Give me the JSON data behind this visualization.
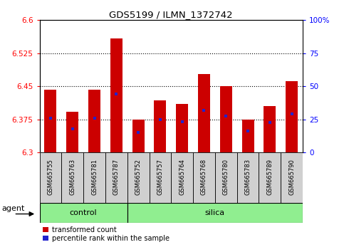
{
  "title": "GDS5199 / ILMN_1372742",
  "samples": [
    "GSM665755",
    "GSM665763",
    "GSM665781",
    "GSM665787",
    "GSM665752",
    "GSM665757",
    "GSM665764",
    "GSM665768",
    "GSM665780",
    "GSM665783",
    "GSM665789",
    "GSM665790"
  ],
  "n_control": 4,
  "n_silica": 8,
  "bar_values": [
    6.442,
    6.393,
    6.443,
    6.558,
    6.375,
    6.418,
    6.41,
    6.478,
    6.45,
    6.375,
    6.405,
    6.462
  ],
  "percentile_values": [
    6.378,
    6.353,
    6.378,
    6.433,
    6.345,
    6.375,
    6.37,
    6.395,
    6.383,
    6.348,
    6.368,
    6.388
  ],
  "ymin": 6.3,
  "ymax": 6.6,
  "yticks": [
    6.3,
    6.375,
    6.45,
    6.525,
    6.6
  ],
  "ytick_labels": [
    "6.3",
    "6.375",
    "6.45",
    "6.525",
    "6.6"
  ],
  "right_yticks": [
    0,
    25,
    50,
    75,
    100
  ],
  "right_ytick_labels": [
    "0",
    "25",
    "50",
    "75",
    "100%"
  ],
  "bar_color": "#cc0000",
  "percentile_color": "#2222cc",
  "group_color": "#90ee90",
  "label_bg": "#d0d0d0",
  "bar_width": 0.55,
  "bar_base": 6.3
}
